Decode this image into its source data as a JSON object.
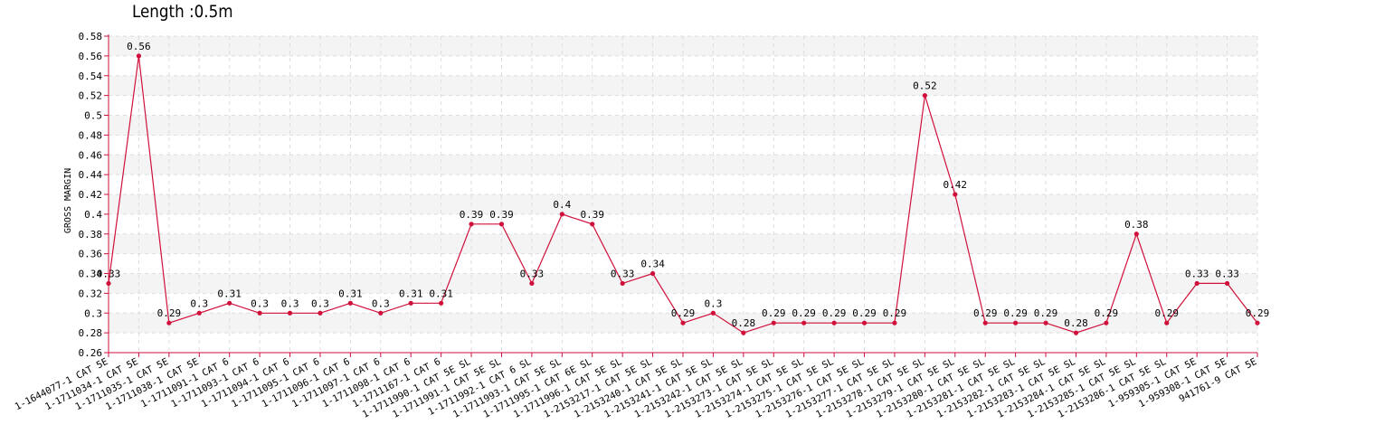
{
  "chart_data": {
    "type": "line",
    "title": "Length :0.5m",
    "xlabel": "",
    "ylabel": "GROSS MARGIN",
    "ylim": [
      0.26,
      0.58
    ],
    "yticks": [
      "0.26",
      "0.28",
      "0.3",
      "0.32",
      "0.34",
      "0.36",
      "0.38",
      "0.4",
      "0.42",
      "0.44",
      "0.46",
      "0.48",
      "0.5",
      "0.52",
      "0.54",
      "0.56",
      "0.58"
    ],
    "grid": true,
    "legend": "none",
    "line_color": "#d0103a",
    "categories": [
      "1-1644077-1 CAT 5E",
      "1-1711034-1 CAT 5E",
      "1-1711035-1 CAT 5E",
      "1-1711038-1 CAT 5E",
      "1-1711091-1 CAT 6",
      "1-1711093-1 CAT 6",
      "1-1711094-1 CAT 6",
      "1-1711095-1 CAT 6",
      "1-1711096-1 CAT 6",
      "1-1711097-1 CAT 6",
      "1-1711098-1 CAT 6",
      "1-1711167-1 CAT 6",
      "1-1711990-1 CAT 5E SL",
      "1-1711991-1 CAT 5E SL",
      "1-1711992-1 CAT 6 SL",
      "1-1711993-1 CAT 5E SL",
      "1-1711995-1 CAT 6E SL",
      "1-1711996-1 CAT 5E SL",
      "1-2153217-1 CAT 5E SL",
      "1-2153240-1 CAT 5E SL",
      "1-2153241-1 CAT 5E SL",
      "1-2153242-1 CAT 5E SL",
      "1-2153273-1 CAT 5E SL",
      "1-2153274-1 CAT 5E SL",
      "1-2153275-1 CAT 5E SL",
      "1-2153276-1 CAT 5E SL",
      "1-2153277-1 CAT 5E SL",
      "1-2153278-1 CAT 5E SL",
      "1-2153279-1 CAT 5E SL",
      "1-2153280-1 CAT 5E SL",
      "1-2153281-1 CAT 5E SL",
      "1-2153282-1 CAT 5E SL",
      "1-2153283-1 CAT 5E SL",
      "1-2153284-1 CAT 5E SL",
      "1-2153285-1 CAT 5E SL",
      "1-2153286-1 CAT 5E SL",
      "1-959305-1 CAT 5E",
      "1-959308-1 CAT 5E",
      "941761-9 CAT 5E"
    ],
    "values": [
      0.33,
      0.56,
      0.29,
      0.3,
      0.31,
      0.3,
      0.3,
      0.3,
      0.31,
      0.3,
      0.31,
      0.31,
      0.39,
      0.39,
      0.33,
      0.4,
      0.39,
      0.33,
      0.34,
      0.29,
      0.3,
      0.28,
      0.29,
      0.29,
      0.29,
      0.29,
      0.29,
      0.52,
      0.42,
      0.29,
      0.29,
      0.29,
      0.28,
      0.29,
      0.38,
      0.29,
      0.33,
      0.33,
      0.29
    ]
  }
}
